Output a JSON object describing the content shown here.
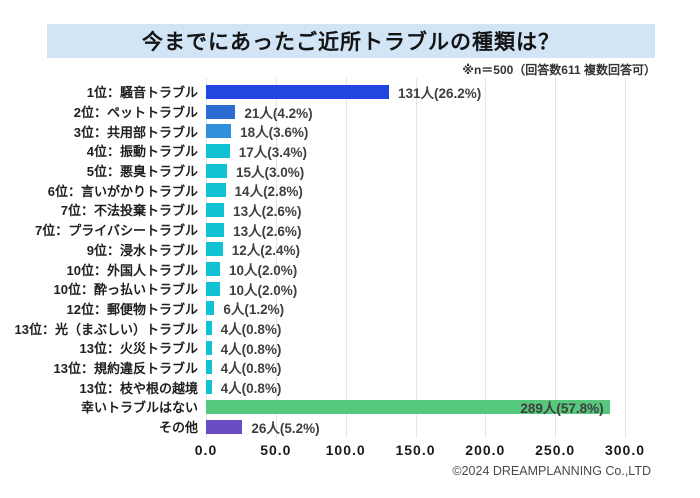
{
  "header": {
    "title": "今までにあったご近所トラブルの種類は？",
    "subtitle": "※n＝500（回答数611 複数回答可）"
  },
  "footer": {
    "copyright": "©2024 DREAMPLANNING Co.,LTD"
  },
  "colors": {
    "title_background": "#d2e5f7",
    "grid_line": "#e4e4e4",
    "rank1_blue": "#2145e0",
    "rank2_blue": "#2c6bd2",
    "rank3_blue": "#3090dc",
    "cyan": "#10c2d4",
    "green": "#56c87c",
    "purple": "#6a4cc4"
  },
  "chart_data": {
    "type": "bar",
    "orientation": "horizontal",
    "title": "今までにあったご近所トラブルの種類は？",
    "xlabel": "",
    "ylabel": "",
    "xlim": [
      0,
      300
    ],
    "x_ticks": [
      "0.0",
      "50.0",
      "100.0",
      "150.0",
      "200.0",
      "250.0",
      "300.0"
    ],
    "grid": true,
    "legend": false,
    "categories": [
      "1位：騒音トラブル",
      "2位：ペットトラブル",
      "3位：共用部トラブル",
      "4位：振動トラブル",
      "5位：悪臭トラブル",
      "6位：言いがかりトラブル",
      "7位：不法投棄トラブル",
      "7位：プライバシートラブル",
      "9位：浸水トラブル",
      "10位：外国人トラブル",
      "10位：酔っ払いトラブル",
      "12位：郵便物トラブル",
      "13位：光（まぶしい）トラブル",
      "13位：火災トラブル",
      "13位：規約違反トラブル",
      "13位：枝や根の越境",
      "幸いトラブルはない",
      "その他"
    ],
    "values": [
      131,
      21,
      18,
      17,
      15,
      14,
      13,
      13,
      12,
      10,
      10,
      6,
      4,
      4,
      4,
      4,
      289,
      26
    ],
    "value_labels": [
      "131人(26.2%)",
      "21人(4.2%)",
      "18人(3.6%)",
      "17人(3.4%)",
      "15人(3.0%)",
      "14人(2.8%)",
      "13人(2.6%)",
      "13人(2.6%)",
      "12人(2.4%)",
      "10人(2.0%)",
      "10人(2.0%)",
      "6人(1.2%)",
      "4人(0.8%)",
      "4人(0.8%)",
      "4人(0.8%)",
      "4人(0.8%)",
      "289人(57.8%)",
      "26人(5.2%)"
    ],
    "bar_colors": [
      "#2145e0",
      "#2c6bd2",
      "#3090dc",
      "#10c2d4",
      "#10c2d4",
      "#10c2d4",
      "#10c2d4",
      "#10c2d4",
      "#10c2d4",
      "#10c2d4",
      "#10c2d4",
      "#10c2d4",
      "#10c2d4",
      "#10c2d4",
      "#10c2d4",
      "#10c2d4",
      "#56c87c",
      "#6a4cc4"
    ],
    "label_inside": [
      false,
      false,
      false,
      false,
      false,
      false,
      false,
      false,
      false,
      false,
      false,
      false,
      false,
      false,
      false,
      false,
      true,
      false
    ]
  }
}
